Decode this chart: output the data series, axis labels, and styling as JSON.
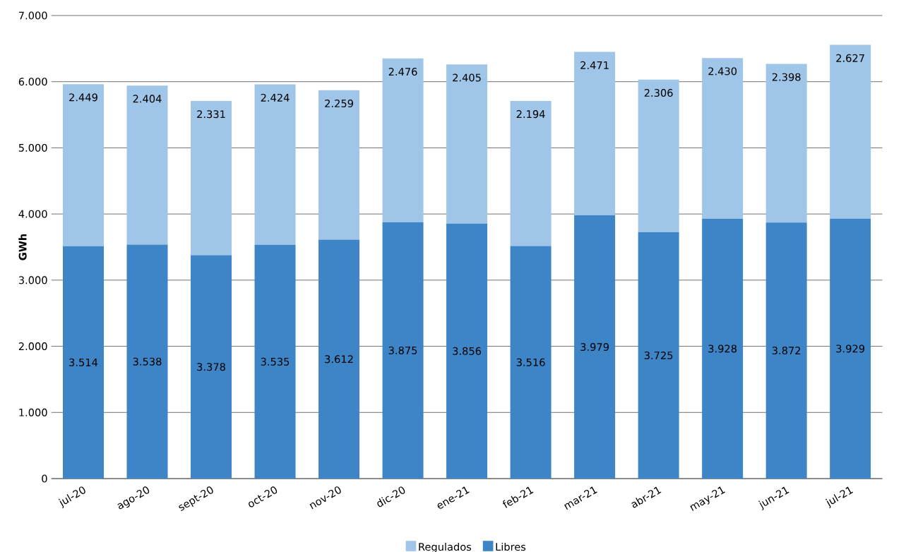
{
  "chart_data": {
    "type": "bar",
    "stacked": true,
    "ylabel": "**GWh**",
    "categories": [
      "jul-20",
      "ago-20",
      "sept-20",
      "oct-20",
      "nov-20",
      "dic-20",
      "ene-21",
      "feb-21",
      "mar-21",
      "abr-21",
      "may-21",
      "jun-21",
      "jul-21"
    ],
    "series": [
      {
        "name": "Libres",
        "color": "#3d85c6",
        "values": [
          3514,
          3538,
          3378,
          3535,
          3612,
          3875,
          3856,
          3516,
          3979,
          3725,
          3928,
          3872,
          3929
        ],
        "value_labels": [
          "3.514",
          "3.538",
          "3.378",
          "3.535",
          "3.612",
          "3.875",
          "3.856",
          "3.516",
          "3.979",
          "3.725",
          "3.928",
          "3.872",
          "3.929"
        ]
      },
      {
        "name": "Regulados",
        "color": "#9fc5e8",
        "values": [
          2449,
          2404,
          2331,
          2424,
          2259,
          2476,
          2405,
          2194,
          2471,
          2306,
          2430,
          2398,
          2627
        ],
        "value_labels": [
          "2.449",
          "2.404",
          "2.331",
          "2.424",
          "2.259",
          "2.476",
          "2.405",
          "2.194",
          "2.471",
          "2.306",
          "2.430",
          "2.398",
          "2.627"
        ]
      }
    ],
    "ylim": [
      0,
      7000
    ],
    "yticks": [
      {
        "value": 0,
        "label": "0"
      },
      {
        "value": 1000,
        "label": "1.000"
      },
      {
        "value": 2000,
        "label": "2.000"
      },
      {
        "value": 3000,
        "label": "3.000"
      },
      {
        "value": 4000,
        "label": "4.000"
      },
      {
        "value": 5000,
        "label": "5.000"
      },
      {
        "value": 6000,
        "label": "6.000"
      },
      {
        "value": 7000,
        "label": "7.000"
      }
    ],
    "grid": "y",
    "legend": "bottom"
  }
}
